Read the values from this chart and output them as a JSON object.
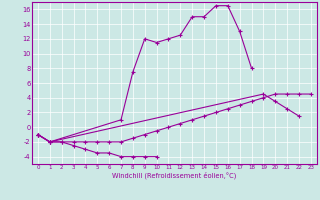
{
  "xlabel": "Windchill (Refroidissement éolien,°C)",
  "x_values": [
    0,
    1,
    2,
    3,
    4,
    5,
    6,
    7,
    8,
    9,
    10,
    11,
    12,
    13,
    14,
    15,
    16,
    17,
    18,
    19,
    20,
    21,
    22,
    23
  ],
  "line1_y": [
    -1,
    -2,
    -2,
    -2.5,
    -3,
    -3.5,
    -3.5,
    -4,
    -4,
    -4,
    -4,
    null,
    null,
    null,
    null,
    null,
    null,
    null,
    null,
    null,
    null,
    null,
    null,
    null
  ],
  "line2_y": [
    -1,
    -2,
    null,
    null,
    null,
    null,
    null,
    1,
    7.5,
    12,
    11.5,
    12,
    12.5,
    15,
    15,
    16.5,
    16.5,
    13,
    8,
    null,
    null,
    null,
    null,
    null
  ],
  "line3_y": [
    -1,
    -2,
    -2,
    -2,
    -2,
    -2,
    -2,
    -2,
    -1.5,
    -1,
    -0.5,
    0,
    0.5,
    1,
    1.5,
    2,
    2.5,
    3,
    3.5,
    4,
    4.5,
    4.5,
    4.5,
    4.5
  ],
  "line4_y": [
    -1,
    -2,
    null,
    null,
    null,
    null,
    null,
    null,
    null,
    null,
    null,
    null,
    null,
    null,
    null,
    null,
    null,
    null,
    null,
    4.5,
    3.5,
    2.5,
    1.5,
    null
  ],
  "ylim": [
    -5,
    17
  ],
  "xlim": [
    -0.5,
    23.5
  ],
  "yticks": [
    -4,
    -2,
    0,
    2,
    4,
    6,
    8,
    10,
    12,
    14,
    16
  ],
  "xticks": [
    0,
    1,
    2,
    3,
    4,
    5,
    6,
    7,
    8,
    9,
    10,
    11,
    12,
    13,
    14,
    15,
    16,
    17,
    18,
    19,
    20,
    21,
    22,
    23
  ],
  "line_color": "#990099",
  "bg_color": "#cce8e5",
  "grid_color": "#ffffff",
  "marker": "+"
}
